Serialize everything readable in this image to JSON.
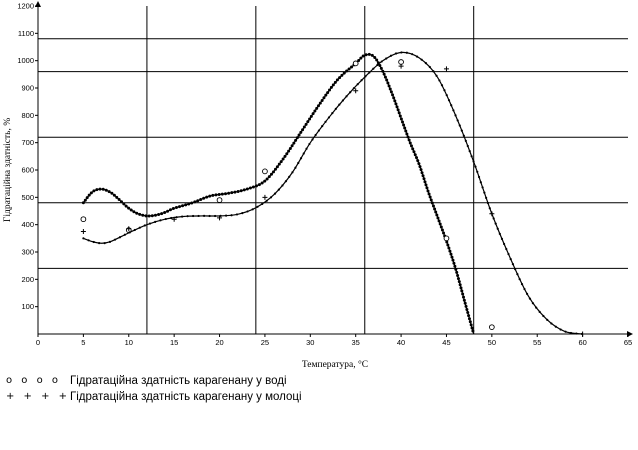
{
  "chart_data": {
    "type": "line",
    "title": "",
    "xlabel": "Температура, °С",
    "ylabel": "Гідратаційна здатність, %",
    "xlim": [
      0,
      65
    ],
    "ylim": [
      0,
      1200
    ],
    "x_ticks": [
      0,
      5,
      10,
      15,
      20,
      25,
      30,
      35,
      40,
      45,
      50,
      55,
      60,
      65
    ],
    "y_ticks": [
      100,
      200,
      300,
      400,
      500,
      600,
      700,
      800,
      900,
      1000,
      1100,
      1200
    ],
    "grid_x": [
      12,
      24,
      36,
      48
    ],
    "grid_y": [
      240,
      480,
      720,
      960,
      1080
    ],
    "legend_position": "bottom-left",
    "series": [
      {
        "name": "Гідратаційна здатність карагенану у воді",
        "marker": "o",
        "points": [
          [
            5,
            420
          ],
          [
            10,
            380
          ],
          [
            20,
            490
          ],
          [
            25,
            595
          ],
          [
            35,
            990
          ],
          [
            40,
            995
          ],
          [
            45,
            350
          ],
          [
            50,
            25
          ]
        ],
        "curve": [
          [
            5,
            480
          ],
          [
            6,
            520
          ],
          [
            7,
            530
          ],
          [
            8,
            518
          ],
          [
            9,
            490
          ],
          [
            10,
            460
          ],
          [
            11,
            440
          ],
          [
            12,
            432
          ],
          [
            13,
            435
          ],
          [
            14,
            445
          ],
          [
            15,
            460
          ],
          [
            17,
            480
          ],
          [
            19,
            505
          ],
          [
            21,
            515
          ],
          [
            23,
            530
          ],
          [
            25,
            560
          ],
          [
            27,
            640
          ],
          [
            29,
            740
          ],
          [
            31,
            840
          ],
          [
            33,
            930
          ],
          [
            35,
            990
          ],
          [
            36,
            1020
          ],
          [
            37,
            1015
          ],
          [
            38,
            960
          ],
          [
            39,
            880
          ],
          [
            40,
            790
          ],
          [
            41,
            700
          ],
          [
            42,
            620
          ],
          [
            43,
            520
          ],
          [
            44,
            430
          ],
          [
            45,
            340
          ],
          [
            46,
            240
          ],
          [
            47,
            120
          ],
          [
            48,
            0
          ]
        ]
      },
      {
        "name": "Гідратаційна здатність карагенану у молоці",
        "marker": "+",
        "points": [
          [
            5,
            375
          ],
          [
            10,
            385
          ],
          [
            15,
            420
          ],
          [
            20,
            425
          ],
          [
            25,
            500
          ],
          [
            35,
            890
          ],
          [
            40,
            980
          ],
          [
            45,
            970
          ],
          [
            50,
            440
          ],
          [
            60,
            0
          ]
        ],
        "curve": [
          [
            5,
            350
          ],
          [
            6,
            338
          ],
          [
            7,
            332
          ],
          [
            8,
            338
          ],
          [
            10,
            370
          ],
          [
            12,
            400
          ],
          [
            14,
            420
          ],
          [
            16,
            430
          ],
          [
            18,
            432
          ],
          [
            20,
            432
          ],
          [
            22,
            438
          ],
          [
            24,
            462
          ],
          [
            26,
            510
          ],
          [
            28,
            590
          ],
          [
            30,
            700
          ],
          [
            32,
            790
          ],
          [
            34,
            870
          ],
          [
            36,
            940
          ],
          [
            38,
            1000
          ],
          [
            40,
            1030
          ],
          [
            42,
            1010
          ],
          [
            44,
            940
          ],
          [
            46,
            800
          ],
          [
            48,
            630
          ],
          [
            50,
            440
          ],
          [
            52,
            280
          ],
          [
            54,
            140
          ],
          [
            56,
            55
          ],
          [
            58,
            10
          ],
          [
            60,
            0
          ]
        ]
      }
    ]
  },
  "legend": {
    "water_marks": "o o o o",
    "milk_marks": "+ + + +"
  }
}
